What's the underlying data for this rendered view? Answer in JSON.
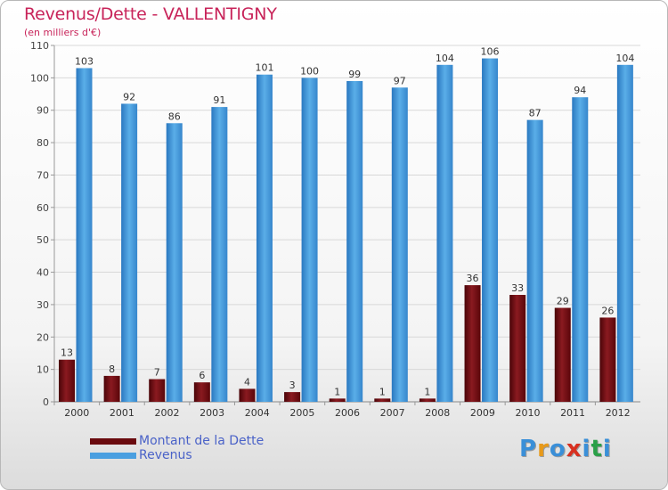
{
  "header": {
    "title": "Revenus/Dette - VALLENTIGNY",
    "subtitle": "(en milliers d'€)"
  },
  "chart_data": {
    "type": "bar",
    "title": "Revenus/Dette - VALLENTIGNY",
    "subtitle": "(en milliers d'€)",
    "xlabel": "",
    "ylabel": "",
    "ylim": [
      0,
      110
    ],
    "yticks": [
      0,
      10,
      20,
      30,
      40,
      50,
      60,
      70,
      80,
      90,
      100,
      110
    ],
    "grid": true,
    "legend_position": "bottom-left",
    "categories": [
      "2000",
      "2001",
      "2002",
      "2003",
      "2004",
      "2005",
      "2006",
      "2007",
      "2008",
      "2009",
      "2010",
      "2011",
      "2012"
    ],
    "series": [
      {
        "name": "Montant de la Dette",
        "color": "#7a0e12",
        "values": [
          13,
          8,
          7,
          6,
          4,
          3,
          1,
          1,
          1,
          36,
          33,
          29,
          26
        ]
      },
      {
        "name": "Revenus",
        "color": "#4a9fe0",
        "values": [
          103,
          92,
          86,
          91,
          101,
          100,
          99,
          97,
          104,
          106,
          87,
          94,
          104
        ]
      }
    ]
  },
  "legend": {
    "items": [
      {
        "label": "Montant de la Dette",
        "color": "#6a0a0e"
      },
      {
        "label": "Revenus",
        "color": "#4a9fe0"
      }
    ]
  },
  "logo": {
    "text": "Proxiti",
    "colors": [
      "#3a8fd8",
      "#e89a1a",
      "#3a8fd8",
      "#d83020",
      "#3a8fd8",
      "#2aa048",
      "#3a8fd8"
    ]
  }
}
